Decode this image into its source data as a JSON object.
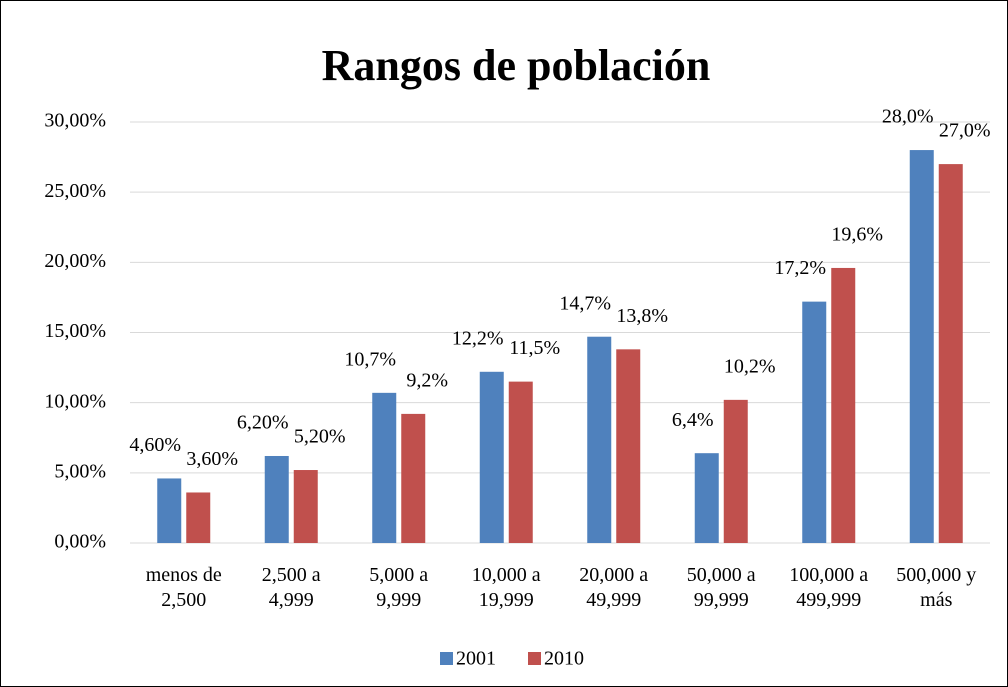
{
  "chart_data": {
    "type": "bar",
    "title": "Rangos de población",
    "categories": [
      "menos de\n2,500",
      "2,500 a\n4,999",
      "5,000 a\n9,999",
      "10,000 a\n19,999",
      "20,000 a\n49,999",
      "50,000 a\n99,999",
      "100,000 a\n499,999",
      "500,000 y\nmás"
    ],
    "series": [
      {
        "name": "2001",
        "color": "#4f81bd",
        "values": [
          4.6,
          6.2,
          10.7,
          12.2,
          14.7,
          6.4,
          17.2,
          28.0
        ],
        "value_labels": [
          "4,60%",
          "6,20%",
          "10,7%",
          "12,2%",
          "14,7%",
          "6,4%",
          "17,2%",
          "28,0%"
        ]
      },
      {
        "name": "2010",
        "color": "#c0504d",
        "values": [
          3.6,
          5.2,
          9.2,
          11.5,
          13.8,
          10.2,
          19.6,
          27.0
        ],
        "value_labels": [
          "3,60%",
          "5,20%",
          "9,2%",
          "11,5%",
          "13,8%",
          "10,2%",
          "19,6%",
          "27,0%"
        ]
      }
    ],
    "ylim": [
      0,
      30
    ],
    "yticks": [
      {
        "value": 0,
        "label": "0,00%"
      },
      {
        "value": 5,
        "label": "5,00%"
      },
      {
        "value": 10,
        "label": "10,00%"
      },
      {
        "value": 15,
        "label": "15,00%"
      },
      {
        "value": 20,
        "label": "20,00%"
      },
      {
        "value": 25,
        "label": "25,00%"
      },
      {
        "value": 30,
        "label": "30,00%"
      }
    ],
    "grid": true,
    "legend": "bottom"
  }
}
